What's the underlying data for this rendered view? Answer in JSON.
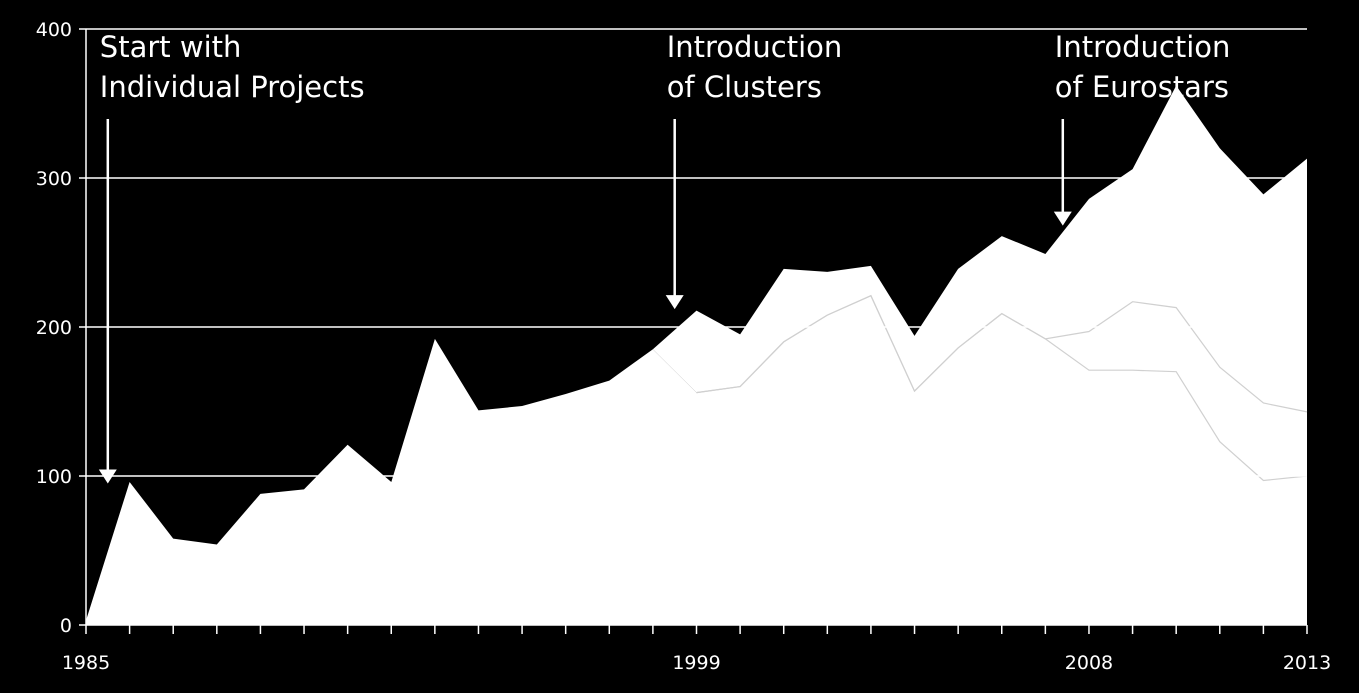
{
  "chart_data": {
    "type": "area",
    "stacked": true,
    "x": [
      1985,
      1986,
      1987,
      1988,
      1989,
      1990,
      1991,
      1992,
      1993,
      1994,
      1995,
      1996,
      1997,
      1998,
      1999,
      2000,
      2001,
      2002,
      2003,
      2004,
      2005,
      2006,
      2007,
      2008,
      2009,
      2010,
      2011,
      2012,
      2013
    ],
    "series": [
      {
        "values": [
          3,
          96,
          58,
          54,
          88,
          91,
          121,
          96,
          192,
          144,
          147,
          155,
          164,
          185,
          156,
          160,
          190,
          208,
          221,
          157,
          186,
          209,
          192,
          171,
          171,
          170,
          123,
          97,
          100
        ]
      },
      {
        "values": [
          0,
          0,
          0,
          0,
          0,
          0,
          0,
          0,
          0,
          0,
          0,
          0,
          0,
          0,
          0,
          0,
          0,
          0,
          0,
          0,
          0,
          0,
          0,
          26,
          46,
          43,
          50,
          52,
          43
        ]
      },
      {
        "values": [
          0,
          0,
          0,
          0,
          0,
          0,
          0,
          0,
          0,
          0,
          0,
          0,
          0,
          0,
          55,
          35,
          49,
          29,
          20,
          37,
          53,
          52,
          57,
          89,
          89,
          149,
          147,
          140,
          170
        ]
      }
    ],
    "ylim": [
      0,
      400
    ],
    "yticks": [
      0,
      100,
      200,
      300,
      400
    ],
    "xtick_labels": [
      "1985",
      "1999",
      "2008",
      "2013"
    ],
    "grid": true,
    "colors": {
      "background": "#000000",
      "fill": "#ffffff",
      "separator": "#d0d0d0",
      "text": "#ffffff"
    },
    "annotations": [
      {
        "lines": [
          "Start with",
          "Individual Projects"
        ],
        "x": 1985.5,
        "y": 95
      },
      {
        "lines": [
          "Introduction",
          "of Clusters"
        ],
        "x": 1998.5,
        "y": 212
      },
      {
        "lines": [
          "Introduction",
          "of Eurostars"
        ],
        "x": 2007.4,
        "y": 268
      }
    ]
  }
}
